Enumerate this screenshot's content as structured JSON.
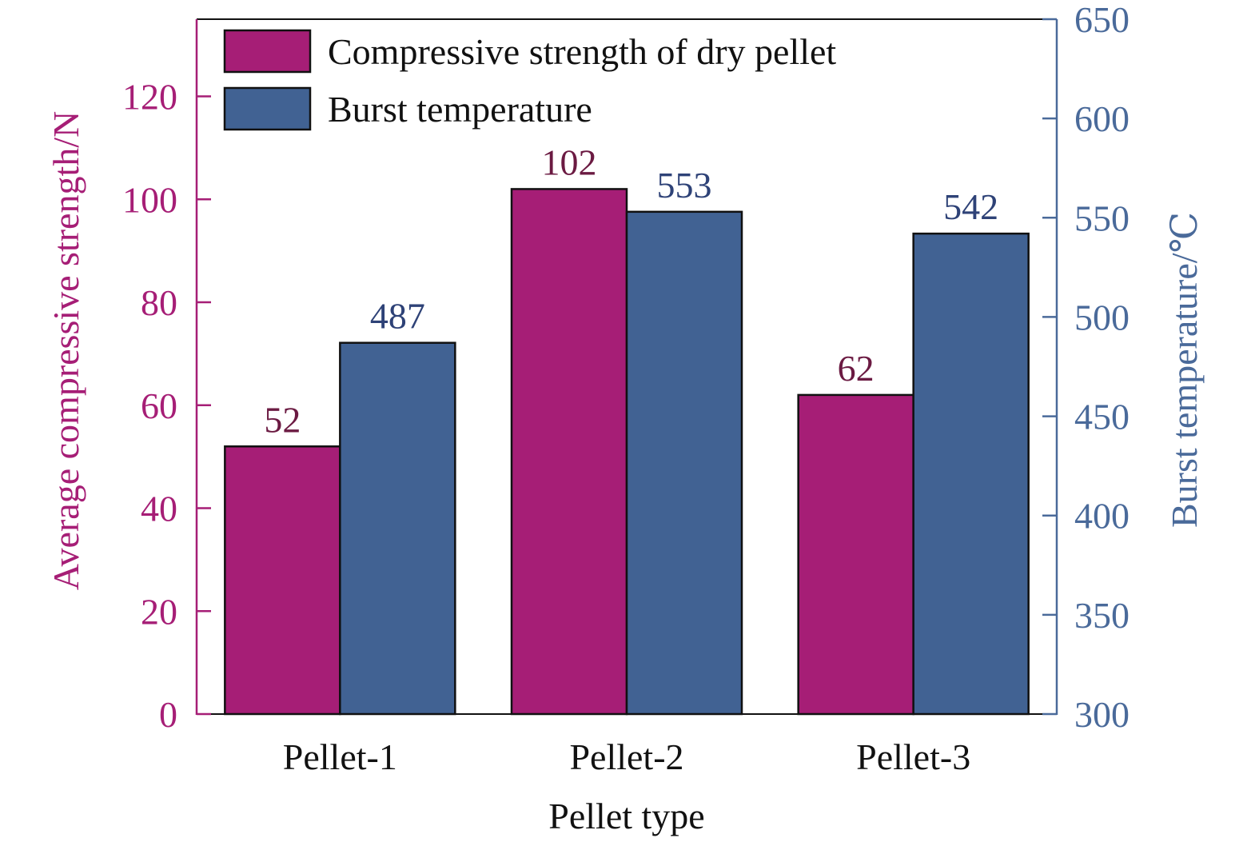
{
  "chart_data": {
    "type": "bar",
    "categories": [
      "Pellet-1",
      "Pellet-2",
      "Pellet-3"
    ],
    "xlabel": "Pellet type",
    "y_left": {
      "label": "Average compressive strength/N",
      "lim": [
        0,
        135
      ],
      "ticks": [
        0,
        20,
        40,
        60,
        80,
        100,
        120
      ],
      "tick_labels": [
        "0",
        "20",
        "40",
        "60",
        "80",
        "100",
        "120"
      ]
    },
    "y_right": {
      "label": "Burst temperature/℃",
      "lim": [
        300,
        650
      ],
      "ticks": [
        300,
        350,
        400,
        450,
        500,
        550,
        600,
        650
      ],
      "tick_labels": [
        "300",
        "350",
        "400",
        "450",
        "500",
        "550",
        "600",
        "650"
      ]
    },
    "series": [
      {
        "name": "Compressive strength of dry pellet",
        "axis": "left",
        "values": [
          52,
          102,
          62
        ],
        "labels": [
          "52",
          "102",
          "62"
        ],
        "color": "#A61E76",
        "label_color": "#6B1A42"
      },
      {
        "name": "Burst temperature",
        "axis": "right",
        "values": [
          487,
          553,
          542
        ],
        "labels": [
          "487",
          "553",
          "542"
        ],
        "color": "#416293",
        "label_color": "#2E4277"
      }
    ],
    "left_axis_color": "#A61E76",
    "right_axis_color": "#4A6A9A",
    "legend": "top-left",
    "grid": false
  }
}
